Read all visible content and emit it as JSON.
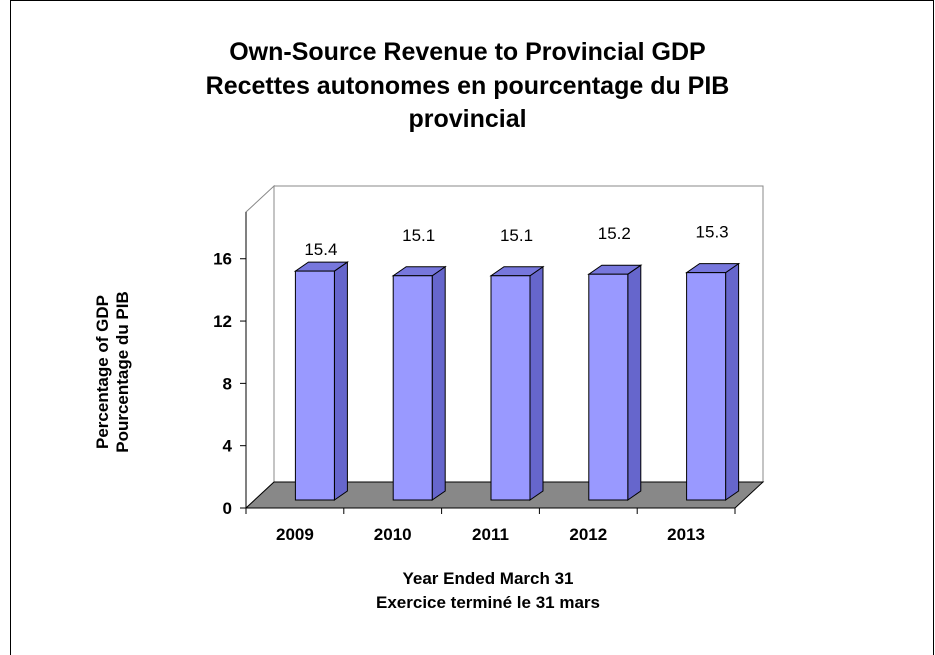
{
  "chart_data": {
    "type": "bar",
    "title": [
      "Own-Source Revenue to Provincial GDP",
      "Recettes autonomes en pourcentage du PIB",
      "provincial"
    ],
    "categories": [
      "2009",
      "2010",
      "2011",
      "2012",
      "2013"
    ],
    "values": [
      15.4,
      15.1,
      15.1,
      15.2,
      15.3
    ],
    "data_labels": [
      "15.4",
      "15.1",
      "15.1",
      "15.2",
      "15.3"
    ],
    "xlabel": [
      "Year Ended March 31",
      "Exercice terminé le 31 mars"
    ],
    "ylabel": [
      "Percentage of GDP",
      "Pourcentage du PIB"
    ],
    "yticks": [
      "0",
      "4",
      "8",
      "12",
      "16"
    ],
    "ylim": [
      0,
      19
    ],
    "grid": false,
    "legend": "none",
    "colors": {
      "bar_front": "#9999ff",
      "bar_side": "#6666cc",
      "bar_top": "#7777dd",
      "floor": "#888888",
      "edge": "#000000"
    }
  }
}
